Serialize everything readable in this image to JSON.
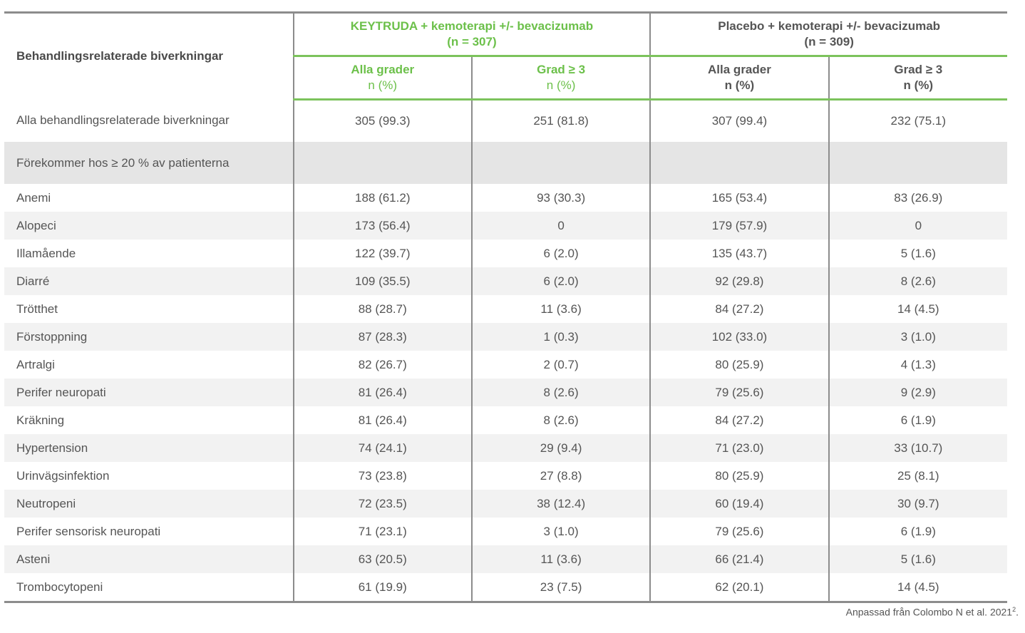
{
  "header": {
    "label_column": "Behandlingsrelaterade biverkningar",
    "group1": {
      "title": "KEYTRUDA + kemoterapi +/- bevacizumab",
      "n": "(n = 307)"
    },
    "group2": {
      "title": "Placebo + kemoterapi +/- bevacizumab",
      "n": "(n = 309)"
    },
    "sub": [
      {
        "title": "Alla grader",
        "unit": "n (%)"
      },
      {
        "title": "Grad ≥ 3",
        "unit": "n (%)"
      },
      {
        "title": "Alla grader",
        "unit": "n (%)"
      },
      {
        "title": "Grad ≥ 3",
        "unit": "n (%)"
      }
    ]
  },
  "rows": [
    {
      "label": "Alla behandlingsrelaterade biverkningar",
      "values": [
        "305 (99.3)",
        "251 (81.8)",
        "307 (99.4)",
        "232 (75.1)"
      ]
    },
    {
      "label": "Förekommer hos ≥ 20 % av patienterna",
      "values": [
        "",
        "",
        "",
        ""
      ]
    },
    {
      "label": "Anemi",
      "values": [
        "188 (61.2)",
        "93 (30.3)",
        "165 (53.4)",
        "83 (26.9)"
      ]
    },
    {
      "label": "Alopeci",
      "values": [
        "173 (56.4)",
        "0",
        "179 (57.9)",
        "0"
      ]
    },
    {
      "label": "Illamående",
      "values": [
        "122 (39.7)",
        "6 (2.0)",
        "135 (43.7)",
        "5 (1.6)"
      ]
    },
    {
      "label": "Diarré",
      "values": [
        "109 (35.5)",
        "6 (2.0)",
        "92 (29.8)",
        "8 (2.6)"
      ]
    },
    {
      "label": "Trötthet",
      "values": [
        "88 (28.7)",
        "11 (3.6)",
        "84 (27.2)",
        "14 (4.5)"
      ]
    },
    {
      "label": "Förstoppning",
      "values": [
        "87 (28.3)",
        "1 (0.3)",
        "102 (33.0)",
        "3 (1.0)"
      ]
    },
    {
      "label": "Artralgi",
      "values": [
        "82 (26.7)",
        "2 (0.7)",
        "80 (25.9)",
        "4 (1.3)"
      ]
    },
    {
      "label": "Perifer neuropati",
      "values": [
        "81 (26.4)",
        "8 (2.6)",
        "79 (25.6)",
        "9 (2.9)"
      ]
    },
    {
      "label": "Kräkning",
      "values": [
        "81 (26.4)",
        "8 (2.6)",
        "84 (27.2)",
        "6 (1.9)"
      ]
    },
    {
      "label": "Hypertension",
      "values": [
        "74 (24.1)",
        "29 (9.4)",
        "71 (23.0)",
        "33 (10.7)"
      ]
    },
    {
      "label": "Urinvägsinfektion",
      "values": [
        "73 (23.8)",
        "27 (8.8)",
        "80 (25.9)",
        "25 (8.1)"
      ]
    },
    {
      "label": "Neutropeni",
      "values": [
        "72 (23.5)",
        "38 (12.4)",
        "60 (19.4)",
        "30 (9.7)"
      ]
    },
    {
      "label": "Perifer sensorisk neuropati",
      "values": [
        "71 (23.1)",
        "3 (1.0)",
        "79 (25.6)",
        "6 (1.9)"
      ]
    },
    {
      "label": "Asteni",
      "values": [
        "63 (20.5)",
        "11 (3.6)",
        "66 (21.4)",
        "5 (1.6)"
      ]
    },
    {
      "label": "Trombocytopeni",
      "values": [
        "61 (19.9)",
        "23 (7.5)",
        "62 (20.1)",
        "14 (4.5)"
      ]
    }
  ],
  "footer": {
    "source": "Anpassad från Colombo N et al. 2021",
    "ref": "2",
    "end": "."
  },
  "colors": {
    "accent_green": "#6cc04a",
    "rule_gray": "#8c8c8c",
    "alt_row": "#f2f2f2",
    "section_row": "#e5e5e5"
  }
}
